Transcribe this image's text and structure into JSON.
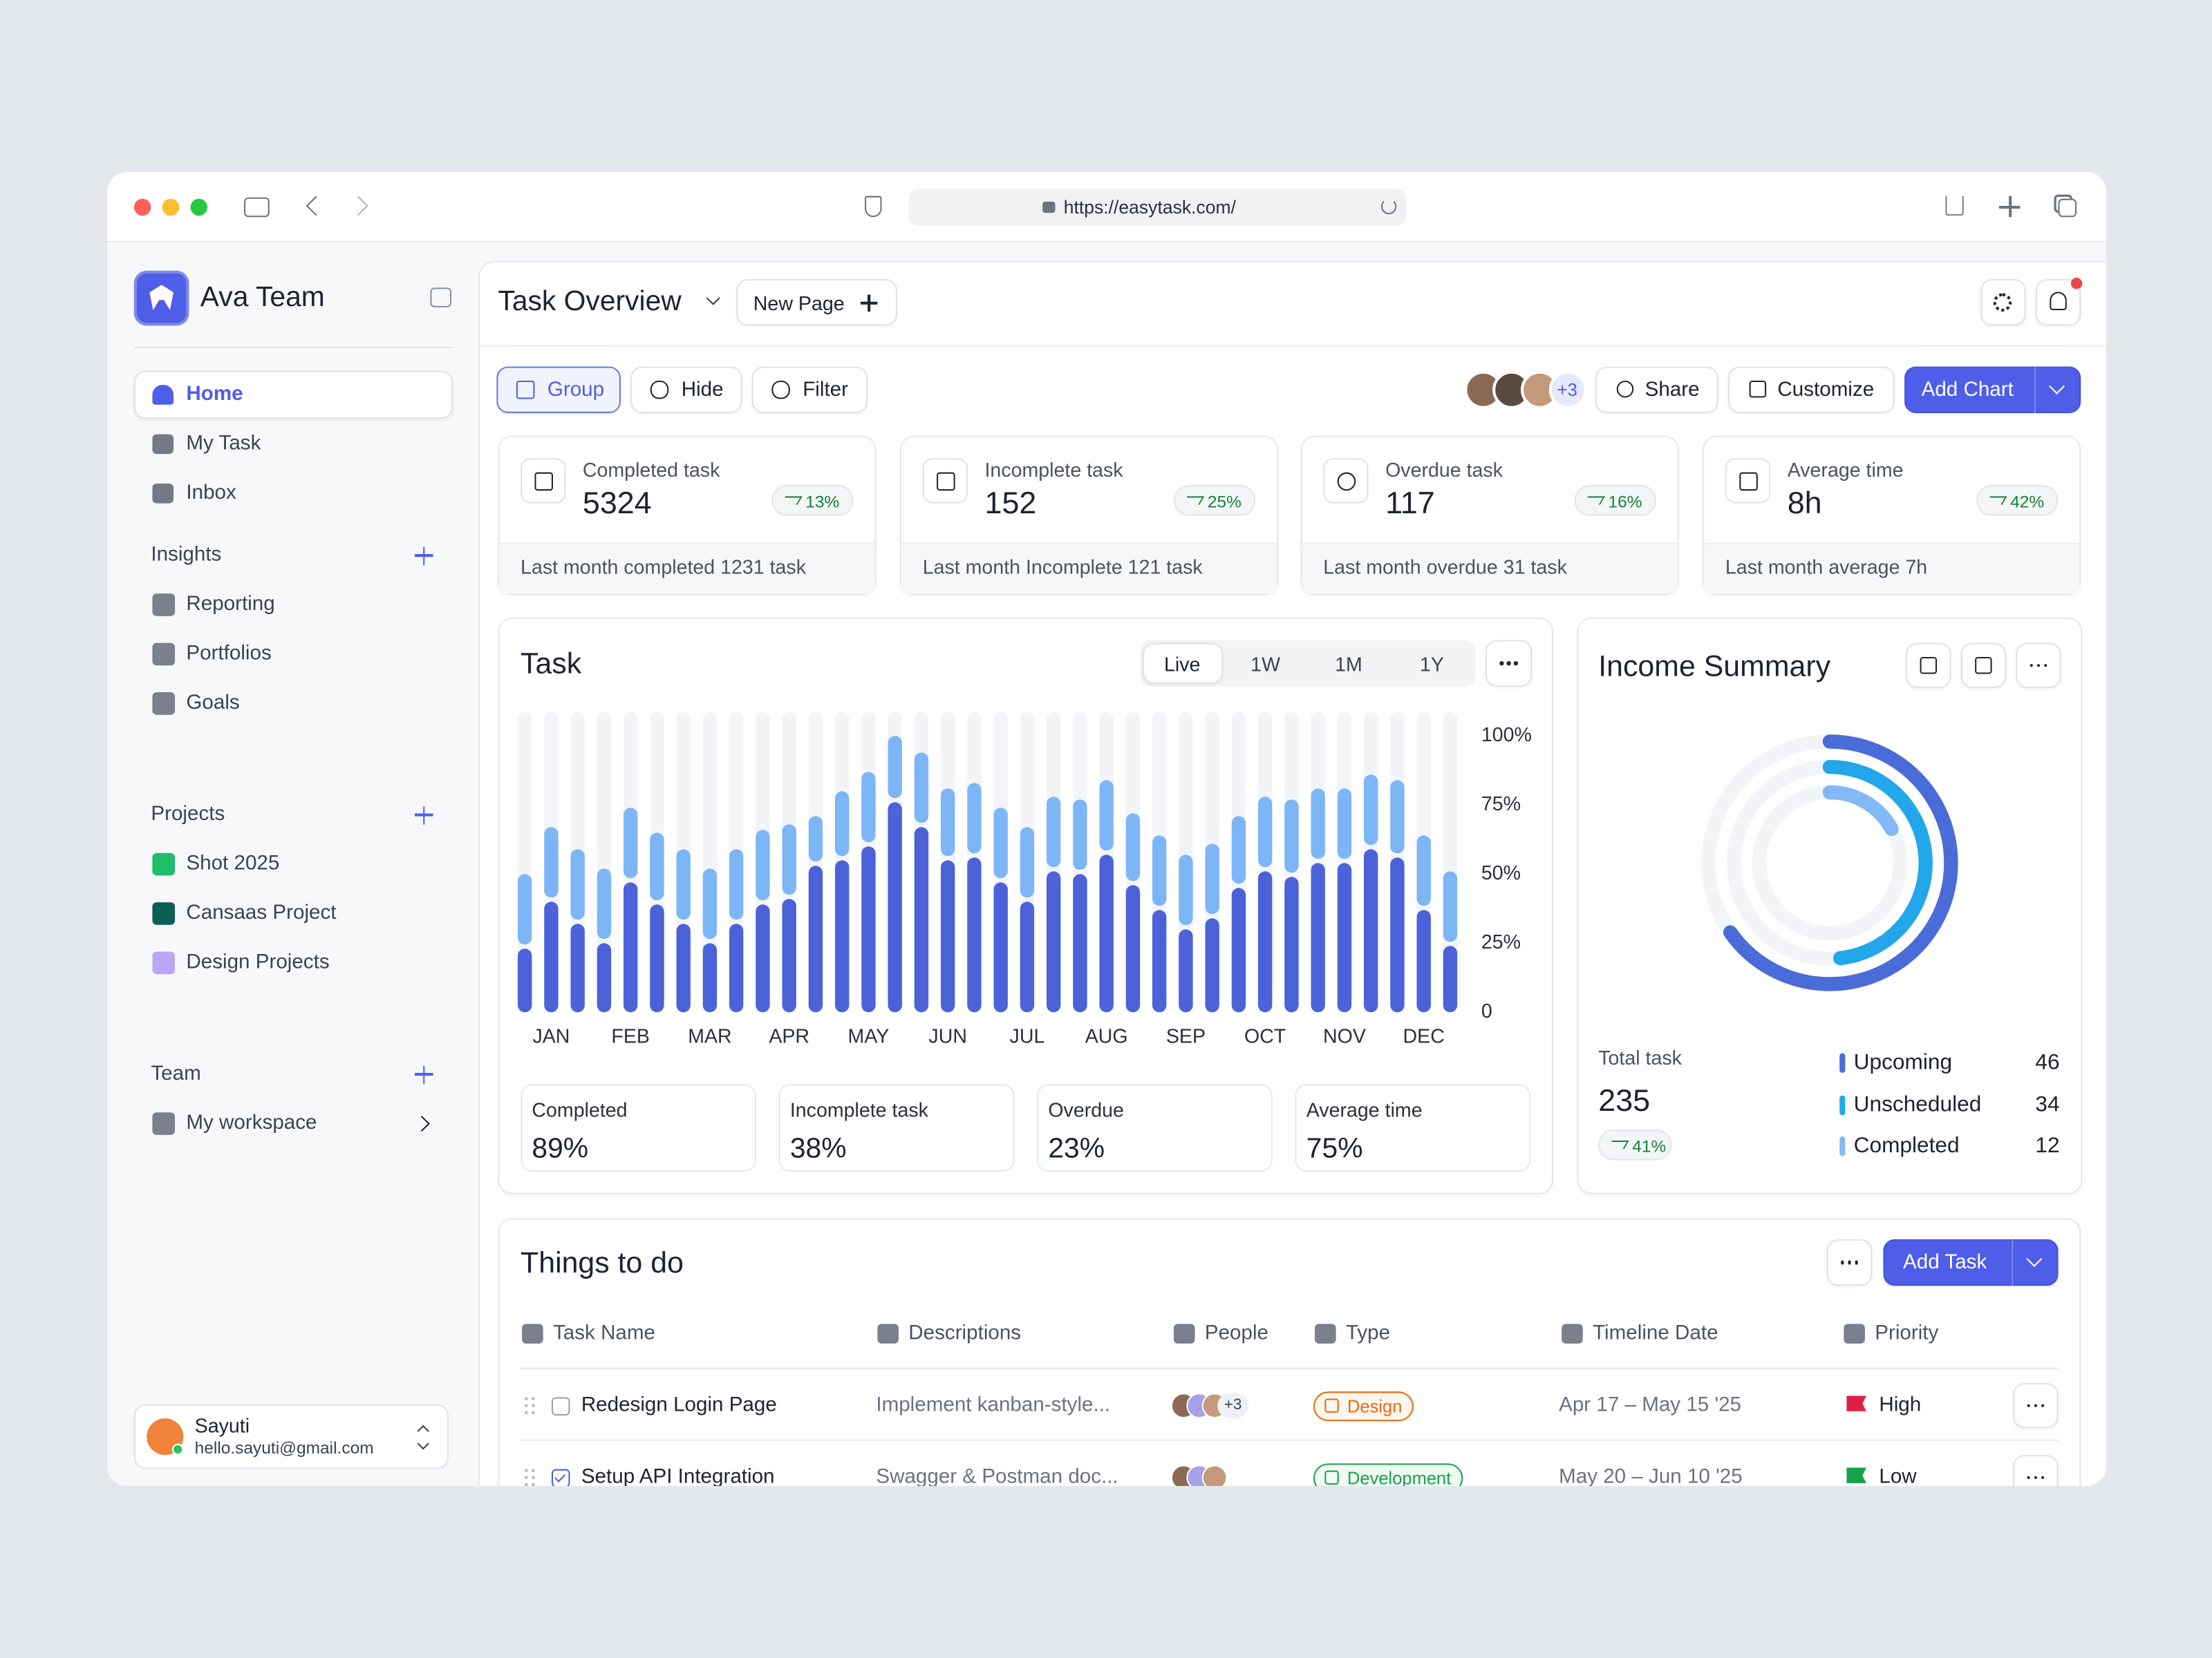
{
  "browser": {
    "url": "https://easytask.com/"
  },
  "sidebar": {
    "team": "Ava Team",
    "nav": [
      "Home",
      "My Task",
      "Inbox"
    ],
    "sections": [
      {
        "title": "Insights",
        "items": [
          "Reporting",
          "Portfolios",
          "Goals"
        ]
      },
      {
        "title": "Projects",
        "items": [
          "Shot 2025",
          "Cansaas Project",
          "Design Projects"
        ]
      },
      {
        "title": "Team",
        "items": [
          "My workspace"
        ]
      }
    ],
    "user": {
      "name": "Sayuti",
      "email": "hello.sayuti@gmail.com"
    }
  },
  "header": {
    "title": "Task Overview",
    "new_page": "New Page"
  },
  "toolbar": {
    "left": [
      "Group",
      "Hide",
      "Filter"
    ],
    "avatars_more": "+3",
    "right": [
      "Share",
      "Customize"
    ],
    "primary": "Add Chart"
  },
  "stats": [
    {
      "label": "Completed task",
      "value": 5324,
      "change": "13%",
      "note": "Last month completed 1231 task"
    },
    {
      "label": "Incomplete task",
      "value": 152,
      "change": "25%",
      "note": "Last month Incomplete 121 task"
    },
    {
      "label": "Overdue task",
      "value": 117,
      "change": "16%",
      "note": "Last month overdue 31 task"
    },
    {
      "label": "Average time",
      "value": "8h",
      "change": "42%",
      "note": "Last month average 7h"
    }
  ],
  "task_panel": {
    "ranges": [
      "Live",
      "1W",
      "1M",
      "1Y"
    ],
    "summary": [
      {
        "label": "Completed",
        "value": "89%"
      },
      {
        "label": "Incomplete task",
        "value": "38%"
      },
      {
        "label": "Overdue",
        "value": "23%"
      },
      {
        "label": "Average time",
        "value": "75%"
      }
    ]
  },
  "income": {
    "total_label": "Total task",
    "total": 235,
    "change": "41%"
  },
  "chart_data": [
    {
      "type": "bar",
      "title": "Task",
      "stacked": true,
      "categories": [
        null,
        "JAN",
        null,
        null,
        "FEB",
        null,
        null,
        "MAR",
        null,
        null,
        "APR",
        null,
        null,
        "MAY",
        null,
        null,
        "JUN",
        null,
        null,
        "JUL",
        null,
        null,
        "AUG",
        null,
        null,
        "SEP",
        null,
        null,
        "OCT",
        null,
        null,
        "NOV",
        null,
        null,
        "DEC",
        null
      ],
      "series": [
        {
          "color": "#4b62d9",
          "values": [
            23,
            40,
            32,
            25,
            47,
            39,
            32,
            25,
            32,
            39,
            41,
            53,
            55,
            60,
            76,
            67,
            55,
            56,
            47,
            40,
            51,
            50,
            57,
            46,
            37,
            30,
            34,
            45,
            51,
            49,
            54,
            54,
            59,
            56,
            37,
            24
          ]
        },
        {
          "color": "#7db6f6",
          "values": [
            27,
            27,
            27,
            27,
            27,
            26,
            27,
            27,
            27,
            27,
            27,
            18,
            25,
            27,
            24,
            27,
            26,
            27,
            27,
            27,
            27,
            27,
            27,
            26,
            27,
            27,
            27,
            26,
            27,
            28,
            27,
            27,
            27,
            28,
            27,
            27
          ]
        }
      ],
      "ylim": [
        0,
        100
      ],
      "yticks": [
        0,
        {
          "value": 25,
          "label": "25%"
        },
        {
          "value": 50,
          "label": "50%"
        },
        {
          "value": 75,
          "label": "75%"
        },
        {
          "value": 100,
          "label": "100%"
        }
      ]
    },
    {
      "type": "donut",
      "title": "Income Summary",
      "categories": [
        "Upcoming",
        "Unscheduled",
        "Completed"
      ],
      "values": [
        46,
        34,
        12
      ],
      "colors": [
        "#4a6cd8",
        "#22a7ea",
        "#82b9f6"
      ]
    }
  ],
  "todo": {
    "title": "Things to do",
    "add": "Add Task",
    "columns": [
      "Task Name",
      "Descriptions",
      "People",
      "Type",
      "Timeline Date",
      "Priority"
    ],
    "rows": [
      {
        "name": "Redesign Login Page",
        "description": "Implement kanban-style...",
        "people_more": "+3",
        "type": "Design",
        "date": "Apr 17 – May 15 '25",
        "priority": "High",
        "done": false
      },
      {
        "name": "Setup API Integration",
        "description": "Swagger & Postman doc...",
        "type": "Development",
        "date": "May 20 – Jun 10 '25",
        "priority": "Low",
        "done": true
      }
    ]
  }
}
